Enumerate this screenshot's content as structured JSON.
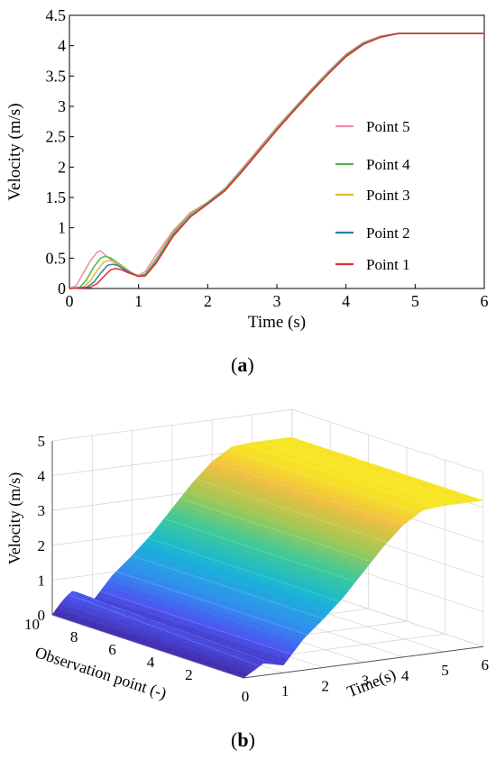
{
  "chart_data": [
    {
      "panel": "a",
      "type": "line",
      "xlabel": "Time (s)",
      "ylabel": "Velocity (m/s)",
      "xlim": [
        0,
        6
      ],
      "ylim": [
        0,
        4.5
      ],
      "xticks": [
        "0",
        "1",
        "2",
        "3",
        "4",
        "5",
        "6"
      ],
      "yticks": [
        "0",
        "0.5",
        "1",
        "1.5",
        "2",
        "2.5",
        "3",
        "3.5",
        "4",
        "4.5"
      ],
      "grid": false,
      "legend_position": "right, middle",
      "series": [
        {
          "name": "Point 5",
          "color": "#f08ca0",
          "x": [
            0,
            0.1,
            0.2,
            0.3,
            0.4,
            0.45,
            0.55,
            0.7,
            0.85,
            1.0,
            1.1,
            1.25,
            1.5,
            1.75,
            2.0,
            2.25,
            2.5,
            2.75,
            3.0,
            3.25,
            3.5,
            3.75,
            4.0,
            4.25,
            4.5,
            4.75,
            5.0,
            5.5,
            6.0
          ],
          "y": [
            0,
            0.05,
            0.25,
            0.45,
            0.6,
            0.62,
            0.52,
            0.38,
            0.26,
            0.22,
            0.28,
            0.55,
            0.95,
            1.25,
            1.42,
            1.65,
            1.98,
            2.32,
            2.66,
            2.97,
            3.28,
            3.58,
            3.86,
            4.05,
            4.16,
            4.2,
            4.2,
            4.2,
            4.2
          ]
        },
        {
          "name": "Point 4",
          "color": "#4cb848",
          "x": [
            0,
            0.15,
            0.25,
            0.35,
            0.45,
            0.52,
            0.6,
            0.75,
            0.9,
            1.0,
            1.1,
            1.25,
            1.5,
            1.75,
            2.0,
            2.25,
            2.5,
            2.75,
            3.0,
            3.25,
            3.5,
            3.75,
            4.0,
            4.25,
            4.5,
            4.75,
            5.0,
            5.5,
            6.0
          ],
          "y": [
            0,
            0.02,
            0.15,
            0.35,
            0.5,
            0.53,
            0.5,
            0.38,
            0.26,
            0.2,
            0.24,
            0.48,
            0.92,
            1.22,
            1.42,
            1.64,
            1.96,
            2.3,
            2.64,
            2.96,
            3.27,
            3.57,
            3.85,
            4.04,
            4.15,
            4.2,
            4.2,
            4.2,
            4.2
          ]
        },
        {
          "name": "Point 3",
          "color": "#e8b830",
          "x": [
            0,
            0.2,
            0.3,
            0.4,
            0.5,
            0.57,
            0.65,
            0.8,
            0.9,
            1.0,
            1.1,
            1.25,
            1.5,
            1.75,
            2.0,
            2.25,
            2.5,
            2.75,
            3.0,
            3.25,
            3.5,
            3.75,
            4.0,
            4.25,
            4.5,
            4.75,
            5.0,
            5.5,
            6.0
          ],
          "y": [
            0,
            0.02,
            0.12,
            0.3,
            0.44,
            0.46,
            0.44,
            0.33,
            0.26,
            0.2,
            0.22,
            0.45,
            0.9,
            1.2,
            1.41,
            1.63,
            1.95,
            2.29,
            2.63,
            2.95,
            3.26,
            3.56,
            3.84,
            4.03,
            4.15,
            4.2,
            4.2,
            4.2,
            4.2
          ]
        },
        {
          "name": "Point 2",
          "color": "#2a7fa8",
          "x": [
            0,
            0.25,
            0.35,
            0.45,
            0.55,
            0.62,
            0.7,
            0.82,
            0.92,
            1.0,
            1.1,
            1.25,
            1.5,
            1.75,
            2.0,
            2.25,
            2.5,
            2.75,
            3.0,
            3.25,
            3.5,
            3.75,
            4.0,
            4.25,
            4.5,
            4.75,
            5.0,
            5.5,
            6.0
          ],
          "y": [
            0,
            0.02,
            0.1,
            0.25,
            0.38,
            0.4,
            0.38,
            0.3,
            0.24,
            0.2,
            0.22,
            0.43,
            0.88,
            1.19,
            1.4,
            1.62,
            1.94,
            2.28,
            2.62,
            2.94,
            3.25,
            3.55,
            3.83,
            4.03,
            4.14,
            4.2,
            4.2,
            4.2,
            4.2
          ]
        },
        {
          "name": "Point 1",
          "color": "#e03030",
          "x": [
            0,
            0.3,
            0.4,
            0.5,
            0.6,
            0.67,
            0.75,
            0.85,
            0.95,
            1.0,
            1.1,
            1.25,
            1.5,
            1.75,
            2.0,
            2.25,
            2.5,
            2.75,
            3.0,
            3.25,
            3.5,
            3.75,
            4.0,
            4.25,
            4.5,
            4.75,
            5.0,
            5.5,
            6.0
          ],
          "y": [
            0,
            0.02,
            0.08,
            0.2,
            0.31,
            0.33,
            0.31,
            0.26,
            0.22,
            0.2,
            0.21,
            0.41,
            0.86,
            1.18,
            1.39,
            1.61,
            1.93,
            2.27,
            2.61,
            2.93,
            3.24,
            3.54,
            3.82,
            4.02,
            4.14,
            4.2,
            4.2,
            4.2,
            4.2
          ]
        }
      ]
    },
    {
      "panel": "b",
      "type": "surface",
      "xlabel": "Time(s)",
      "ylabel": "Observation point (-)",
      "zlabel": "Velocity (m/s)",
      "xlim": [
        0,
        6
      ],
      "ylim": [
        0,
        10
      ],
      "zlim": [
        0,
        5
      ],
      "xticks": [
        "0",
        "1",
        "2",
        "3",
        "4",
        "5",
        "6"
      ],
      "yticks": [
        "2",
        "4",
        "6",
        "8",
        "10"
      ],
      "zticks": [
        "0",
        "1",
        "2",
        "3",
        "4",
        "5"
      ],
      "colormap": "parula",
      "profile_time": [
        0,
        0.5,
        1.0,
        1.5,
        2.0,
        2.5,
        3.0,
        3.5,
        4.0,
        4.5,
        5.0,
        5.5,
        6.0
      ],
      "profile_velocity": [
        0,
        0.35,
        0.22,
        0.9,
        1.4,
        1.95,
        2.6,
        3.25,
        3.8,
        4.15,
        4.2,
        4.2,
        4.2
      ]
    }
  ],
  "panel_labels": {
    "a": "a",
    "b": "b"
  }
}
